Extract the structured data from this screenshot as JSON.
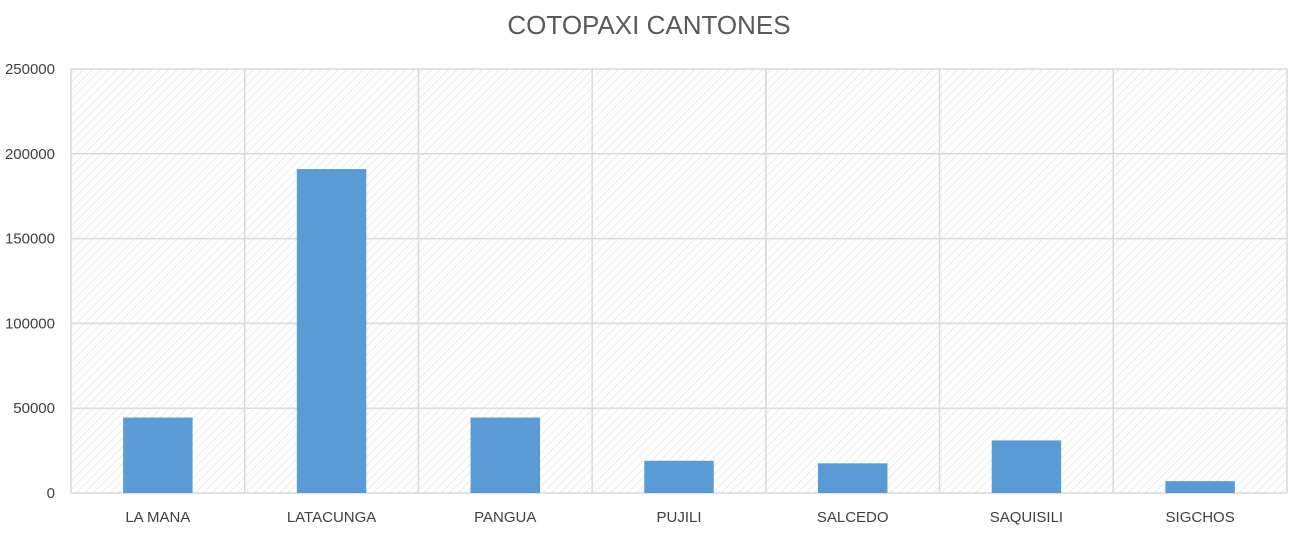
{
  "chart_data": {
    "type": "bar",
    "title": "COTOPAXI CANTONES",
    "categories": [
      "LA MANA",
      "LATACUNGA",
      "PANGUA",
      "PUJILI",
      "SALCEDO",
      "SAQUISILI",
      "SIGCHOS"
    ],
    "series": [
      {
        "values": [
          44500,
          191000,
          44500,
          19000,
          17500,
          31000,
          7000
        ]
      }
    ],
    "ylim": [
      0,
      250000
    ],
    "yticks": [
      0,
      50000,
      100000,
      150000,
      200000,
      250000
    ],
    "ytick_labels": [
      "0",
      "50000",
      "100000",
      "150000",
      "200000",
      "250000"
    ],
    "xlabel": "",
    "ylabel": "",
    "grid": true,
    "plot_background": "hatched",
    "colors": {
      "bar": "#5b9bd5",
      "grid": "#d9d9d9",
      "hatch": "#e6e6e6"
    }
  }
}
